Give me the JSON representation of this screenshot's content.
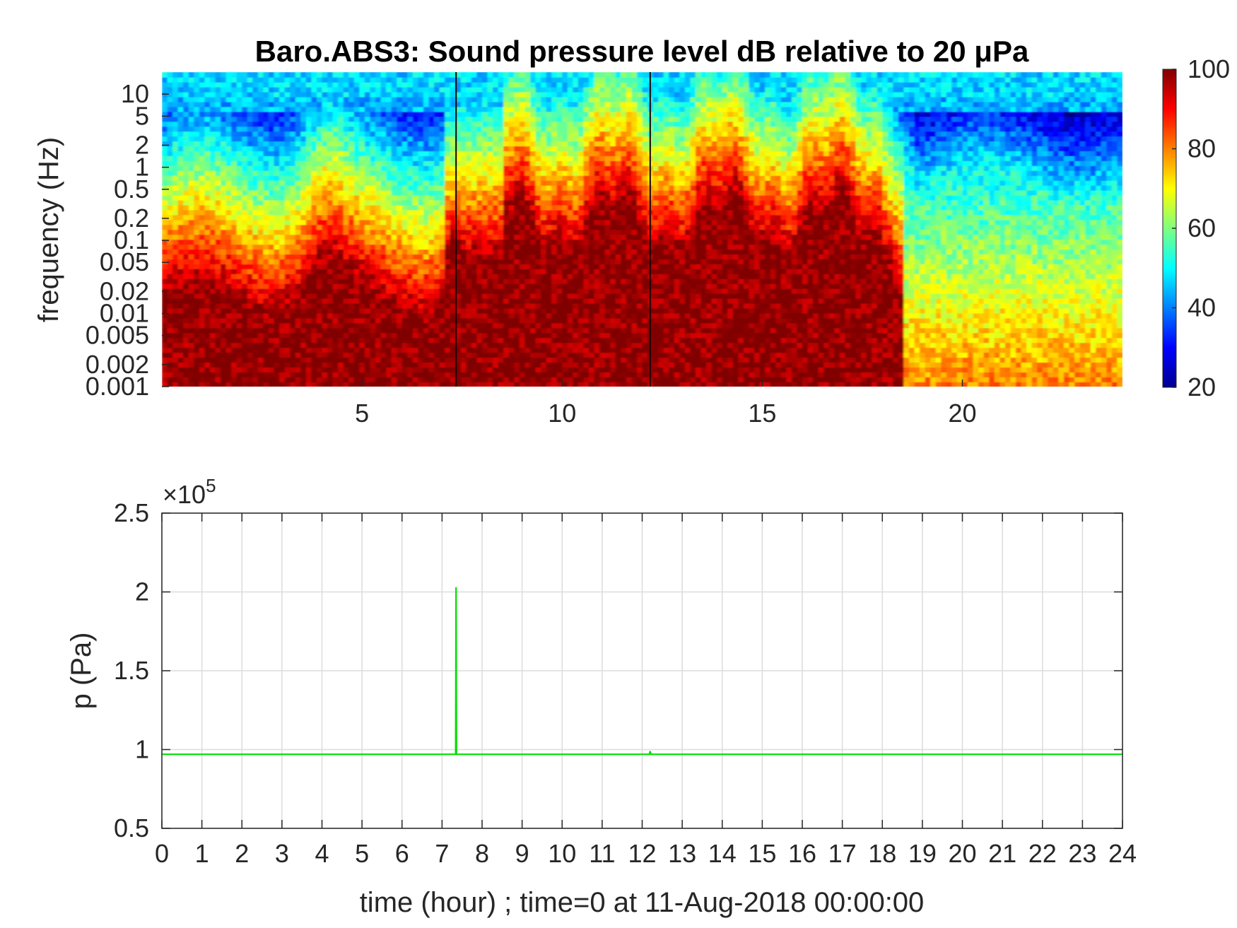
{
  "chart_data": [
    {
      "type": "heatmap",
      "title": "Baro.ABS3: Sound pressure level dB relative to 20 μPa",
      "ylabel": "frequency (Hz)",
      "xlabel": "",
      "x_range": [
        0,
        24
      ],
      "x_ticks": [
        5,
        10,
        15,
        20
      ],
      "y_scale": "log",
      "y_range": [
        0.001,
        20
      ],
      "y_ticks": [
        10,
        5,
        2,
        1,
        0.5,
        0.2,
        0.1,
        0.05,
        0.02,
        0.01,
        0.005,
        0.002,
        0.001
      ],
      "y_tick_labels": [
        "10",
        "5",
        "2",
        "1",
        "0.5",
        "0.2",
        "0.1",
        "0.05",
        "0.02",
        "0.01",
        "0.005",
        "0.002",
        "0.001"
      ],
      "colormap": "jet",
      "colorbar": {
        "range": [
          20,
          100
        ],
        "ticks": [
          100,
          80,
          60,
          40,
          20
        ]
      },
      "events_hour": [
        7.35,
        12.2
      ]
    },
    {
      "type": "line",
      "xlabel": "time (hour) ; time=0 at 11-Aug-2018 00:00:00",
      "ylabel": "p (Pa)",
      "y_exponent_label": "×10",
      "y_exponent_power": "5",
      "x_range": [
        0,
        24
      ],
      "y_range": [
        0.5,
        2.5
      ],
      "x_ticks": [
        0,
        1,
        2,
        3,
        4,
        5,
        6,
        7,
        8,
        9,
        10,
        11,
        12,
        13,
        14,
        15,
        16,
        17,
        18,
        19,
        20,
        21,
        22,
        23,
        24
      ],
      "y_ticks": [
        0.5,
        1,
        1.5,
        2,
        2.5
      ],
      "y_tick_labels": [
        "0.5",
        "1",
        "1.5",
        "2",
        "2.5"
      ],
      "grid": true,
      "series": [
        {
          "color": "#00e000",
          "x": [
            0,
            7.34,
            7.35,
            7.36,
            12.18,
            12.2,
            12.22,
            24
          ],
          "y": [
            0.97,
            0.97,
            2.03,
            0.97,
            0.97,
            0.99,
            0.97,
            0.97
          ]
        }
      ]
    }
  ]
}
